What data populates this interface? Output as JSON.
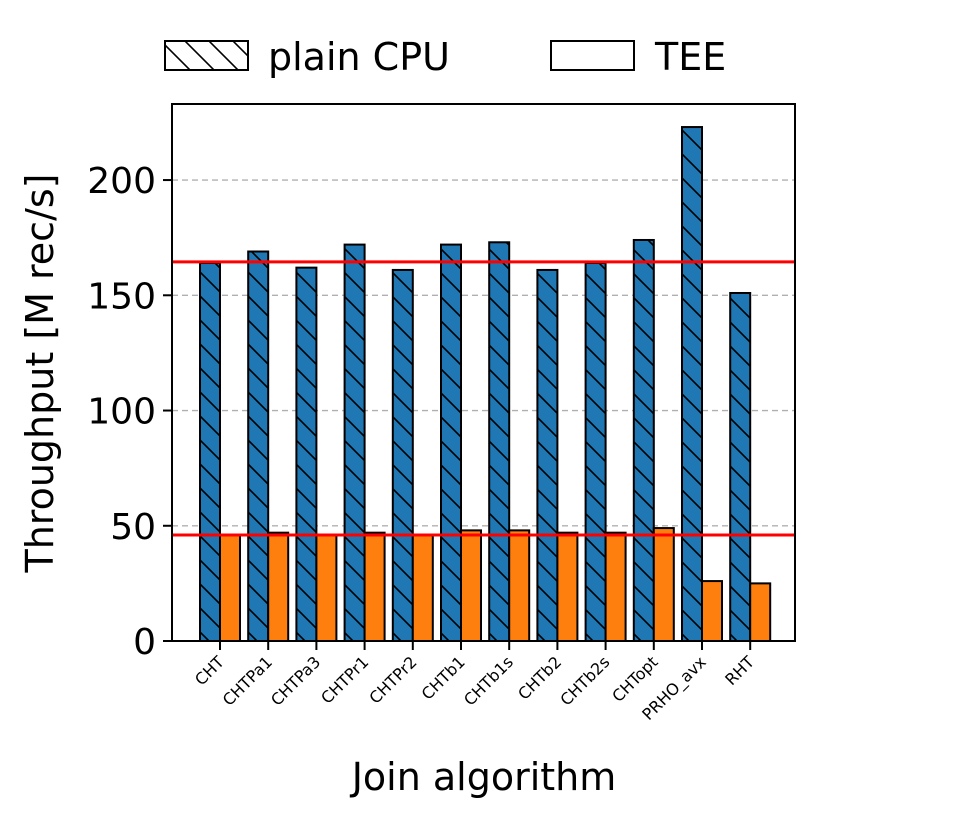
{
  "chart_data": {
    "type": "bar",
    "xlabel": "Join algorithm",
    "ylabel": "Throughput [M rec/s]",
    "categories": [
      "CHT",
      "CHTPa1",
      "CHTPa3",
      "CHTPr1",
      "CHTPr2",
      "CHTb1",
      "CHTb1s",
      "CHTb2",
      "CHTb2s",
      "CHTopt",
      "PRHO_avx",
      "RHT"
    ],
    "series": [
      {
        "name": "plain CPU",
        "color": "#1f77b4",
        "hatch": "diagonal",
        "values": [
          164,
          169,
          162,
          172,
          161,
          172,
          173,
          161,
          164,
          174,
          223,
          151
        ]
      },
      {
        "name": "TEE",
        "color": "#ff7f0e",
        "hatch": "none",
        "values": [
          46,
          47,
          46,
          47,
          46,
          48,
          48,
          47,
          47,
          49,
          26,
          25
        ]
      }
    ],
    "reference_lines": [
      {
        "y": 164.5,
        "color": "#ff0000"
      },
      {
        "y": 46,
        "color": "#ff0000"
      }
    ],
    "ylim": [
      0,
      233
    ],
    "yticks": [
      0,
      50,
      100,
      150,
      200
    ],
    "grid": "horizontal dashed",
    "legend_position": "top"
  }
}
